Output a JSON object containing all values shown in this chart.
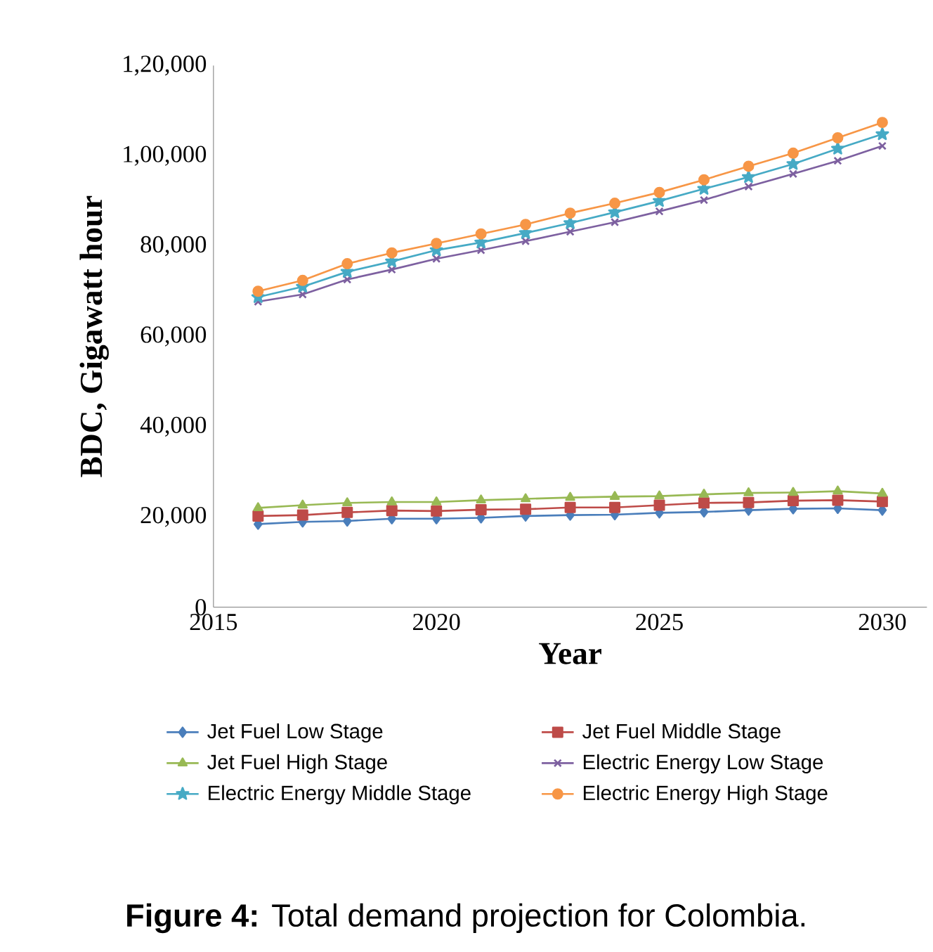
{
  "chart_data": {
    "type": "line",
    "xlabel": "Year",
    "ylabel": "BDC, Gigawatt hour",
    "x": [
      2016,
      2017,
      2018,
      2019,
      2020,
      2021,
      2022,
      2023,
      2024,
      2025,
      2026,
      2027,
      2028,
      2029,
      2030
    ],
    "xlim": [
      2015,
      2031
    ],
    "xticks": [
      2015,
      2020,
      2025,
      2030
    ],
    "ylim": [
      0,
      120000
    ],
    "yticks": [
      0,
      {
        "value": 20000,
        "label": "20,000"
      },
      {
        "value": 40000,
        "label": "40,000"
      },
      {
        "value": 60000,
        "label": "60,000"
      },
      {
        "value": 80000,
        "label": "80,000"
      },
      {
        "value": 100000,
        "label": "1,00,000"
      },
      {
        "value": 120000,
        "label": "1,20,000"
      }
    ],
    "grid": false,
    "legend": "bottom",
    "line_style": "solid",
    "series": [
      {
        "name": "Jet Fuel Low Stage",
        "color": "#4a7ebb",
        "marker": "diamond",
        "values": [
          18400,
          18900,
          19100,
          19600,
          19600,
          19800,
          20200,
          20400,
          20500,
          20900,
          21100,
          21500,
          21800,
          21900,
          21500
        ]
      },
      {
        "name": "Jet Fuel Middle Stage",
        "color": "#be4b48",
        "marker": "square",
        "values": [
          20200,
          20400,
          21000,
          21400,
          21300,
          21600,
          21700,
          22100,
          22100,
          22600,
          23100,
          23200,
          23600,
          23700,
          23400
        ]
      },
      {
        "name": "Jet Fuel High Stage",
        "color": "#98b954",
        "marker": "triangle",
        "values": [
          22000,
          22600,
          23100,
          23300,
          23300,
          23700,
          24000,
          24300,
          24500,
          24600,
          25000,
          25300,
          25400,
          25700,
          25200
        ]
      },
      {
        "name": "Electric Energy Low Stage",
        "color": "#7d60a0",
        "marker": "cross",
        "values": [
          67700,
          69300,
          72600,
          74800,
          77200,
          79100,
          81100,
          83200,
          85300,
          87700,
          90200,
          93200,
          96000,
          98900,
          102200
        ]
      },
      {
        "name": "Electric Energy Middle Stage",
        "color": "#46aac5",
        "marker": "star",
        "values": [
          68700,
          71000,
          74300,
          76600,
          79100,
          80800,
          82900,
          85100,
          87500,
          90000,
          92700,
          95300,
          98200,
          101600,
          104800
        ]
      },
      {
        "name": "Electric Energy High Stage",
        "color": "#f79646",
        "marker": "circle",
        "values": [
          70000,
          72400,
          76100,
          78500,
          80600,
          82700,
          84800,
          87300,
          89500,
          91900,
          94700,
          97700,
          100600,
          104000,
          107400
        ]
      }
    ],
    "annotations": [
      "**Figure 4:** Total demand projection for Colombia."
    ]
  }
}
